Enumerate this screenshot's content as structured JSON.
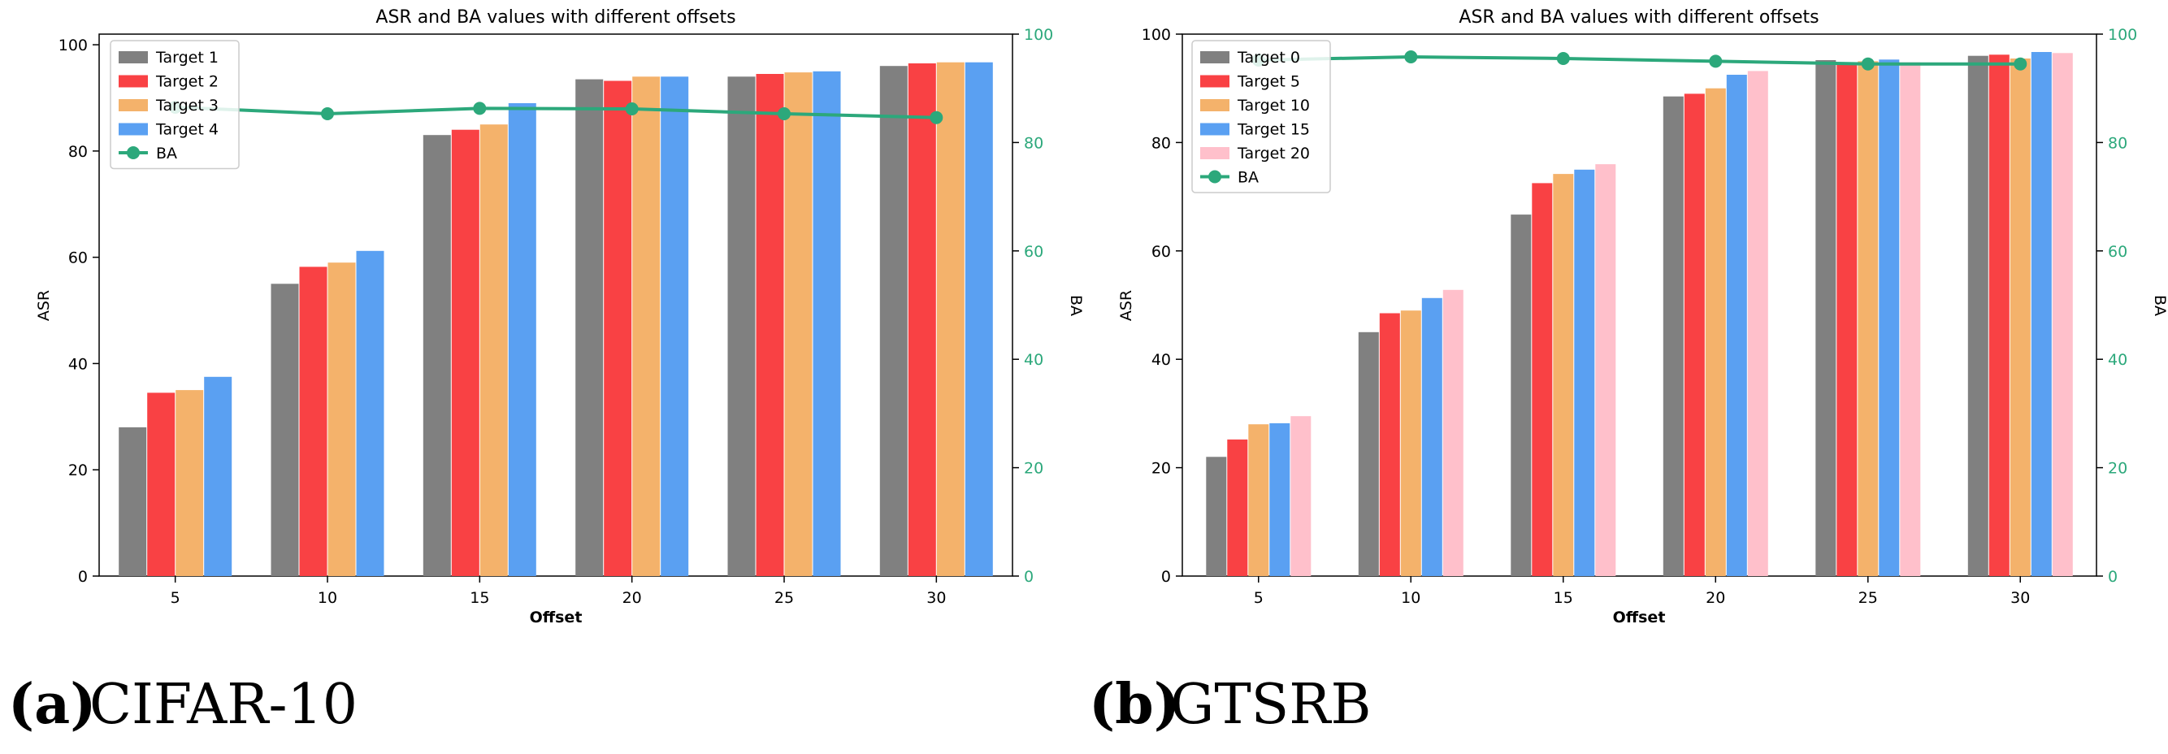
{
  "chart_data": [
    {
      "type": "bar",
      "title": "ASR and BA values with different offsets",
      "xlabel": "Offset",
      "ylabel": "ASR",
      "y2label": "BA",
      "ylim": [
        0,
        102
      ],
      "y2lim": [
        0,
        100
      ],
      "yticks": [
        0,
        20,
        40,
        60,
        80,
        100
      ],
      "y2ticks": [
        0,
        20,
        40,
        60,
        80,
        100
      ],
      "categories": [
        "5",
        "10",
        "15",
        "20",
        "25",
        "30"
      ],
      "series": [
        {
          "name": "Target 1",
          "color": "#808080",
          "values": [
            28.0,
            55.0,
            83.0,
            93.5,
            94.0,
            96.0
          ]
        },
        {
          "name": "Target 2",
          "color": "#f94144",
          "values": [
            34.5,
            58.2,
            84.0,
            93.2,
            94.5,
            96.5
          ]
        },
        {
          "name": "Target 3",
          "color": "#f4b26b",
          "values": [
            35.0,
            59.0,
            85.0,
            94.0,
            94.8,
            96.7
          ]
        },
        {
          "name": "Target 4",
          "color": "#5aa0f2",
          "values": [
            37.5,
            61.2,
            89.0,
            94.0,
            95.0,
            96.7
          ]
        }
      ],
      "line": {
        "name": "BA",
        "color": "#2ca87b",
        "axis": "right",
        "values": [
          86.5,
          85.3,
          86.3,
          86.2,
          85.3,
          84.6
        ]
      },
      "legend": "top-left",
      "grid": false
    },
    {
      "type": "bar",
      "title": "ASR and BA values with different offsets",
      "xlabel": "Offset",
      "ylabel": "ASR",
      "y2label": "BA",
      "ylim": [
        0,
        100
      ],
      "y2lim": [
        0,
        100
      ],
      "yticks": [
        0,
        20,
        40,
        60,
        80,
        100
      ],
      "y2ticks": [
        0,
        20,
        40,
        60,
        80,
        100
      ],
      "categories": [
        "5",
        "10",
        "15",
        "20",
        "25",
        "30"
      ],
      "series": [
        {
          "name": "Target 0",
          "color": "#808080",
          "values": [
            22.0,
            45.0,
            66.7,
            88.5,
            95.2,
            96.0
          ]
        },
        {
          "name": "Target 5",
          "color": "#f94144",
          "values": [
            25.2,
            48.5,
            72.5,
            89.0,
            94.5,
            96.2
          ]
        },
        {
          "name": "Target 10",
          "color": "#f4b26b",
          "values": [
            28.0,
            49.0,
            74.2,
            90.0,
            95.0,
            95.5
          ]
        },
        {
          "name": "Target 15",
          "color": "#5aa0f2",
          "values": [
            28.2,
            51.3,
            75.0,
            92.5,
            95.3,
            96.7
          ]
        },
        {
          "name": "Target 20",
          "color": "#ffc0cb",
          "values": [
            29.5,
            52.8,
            76.0,
            93.2,
            94.8,
            96.5
          ]
        }
      ],
      "line": {
        "name": "BA",
        "color": "#2ca87b",
        "axis": "right",
        "values": [
          95.2,
          95.8,
          95.5,
          95.0,
          94.5,
          94.5
        ]
      },
      "legend": "top-left",
      "grid": false
    }
  ],
  "captions": [
    {
      "letter": "(a)",
      "text": "CIFAR-10"
    },
    {
      "letter": "(b)",
      "text": "GTSRB"
    }
  ]
}
